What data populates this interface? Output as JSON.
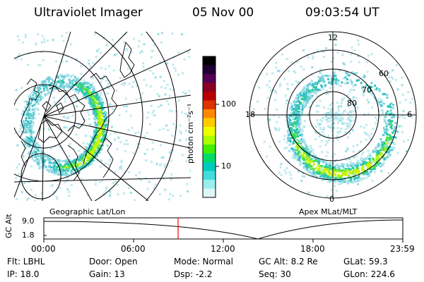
{
  "header": {
    "instrument": "Ultraviolet Imager",
    "date": "05 Nov 00",
    "time": "09:03:54 UT"
  },
  "left_panel": {
    "label": "Geographic Lat/Lon"
  },
  "right_panel": {
    "label": "Apex MLat/MLT",
    "mlt_labels": [
      "12",
      "18",
      "6",
      "0"
    ],
    "lat_labels": [
      "60",
      "70",
      "80"
    ]
  },
  "colorbar": {
    "unit_label": "photon cm⁻²s⁻¹",
    "ticks": [
      "100",
      "10"
    ],
    "colors": [
      "#000000",
      "#220033",
      "#550055",
      "#880022",
      "#bb0000",
      "#dd3300",
      "#ff8800",
      "#ffcc00",
      "#eeff00",
      "#aaff00",
      "#44ee00",
      "#00dd66",
      "#00ccbb",
      "#44dddd",
      "#99eeee",
      "#ddf6f6"
    ]
  },
  "timeline": {
    "axis_label": "GC Alt",
    "y_ticks": [
      "9.0",
      "1.8"
    ],
    "x_ticks": [
      "00:00",
      "06:00",
      "12:00",
      "18:00",
      "23:59"
    ],
    "marker_color": "#ff0000"
  },
  "footer": {
    "flt": "Flt: LBHL",
    "ip": "IP: 18.0",
    "door": "Door: Open",
    "gain": "Gain: 13",
    "mode": "Mode: Normal",
    "dsp": "Dsp:    -2.2",
    "gcalt": "GC Alt: 8.2 Re",
    "seq": "Seq: 30",
    "glat": "GLat:  59.3",
    "glon": "GLon: 224.6"
  }
}
